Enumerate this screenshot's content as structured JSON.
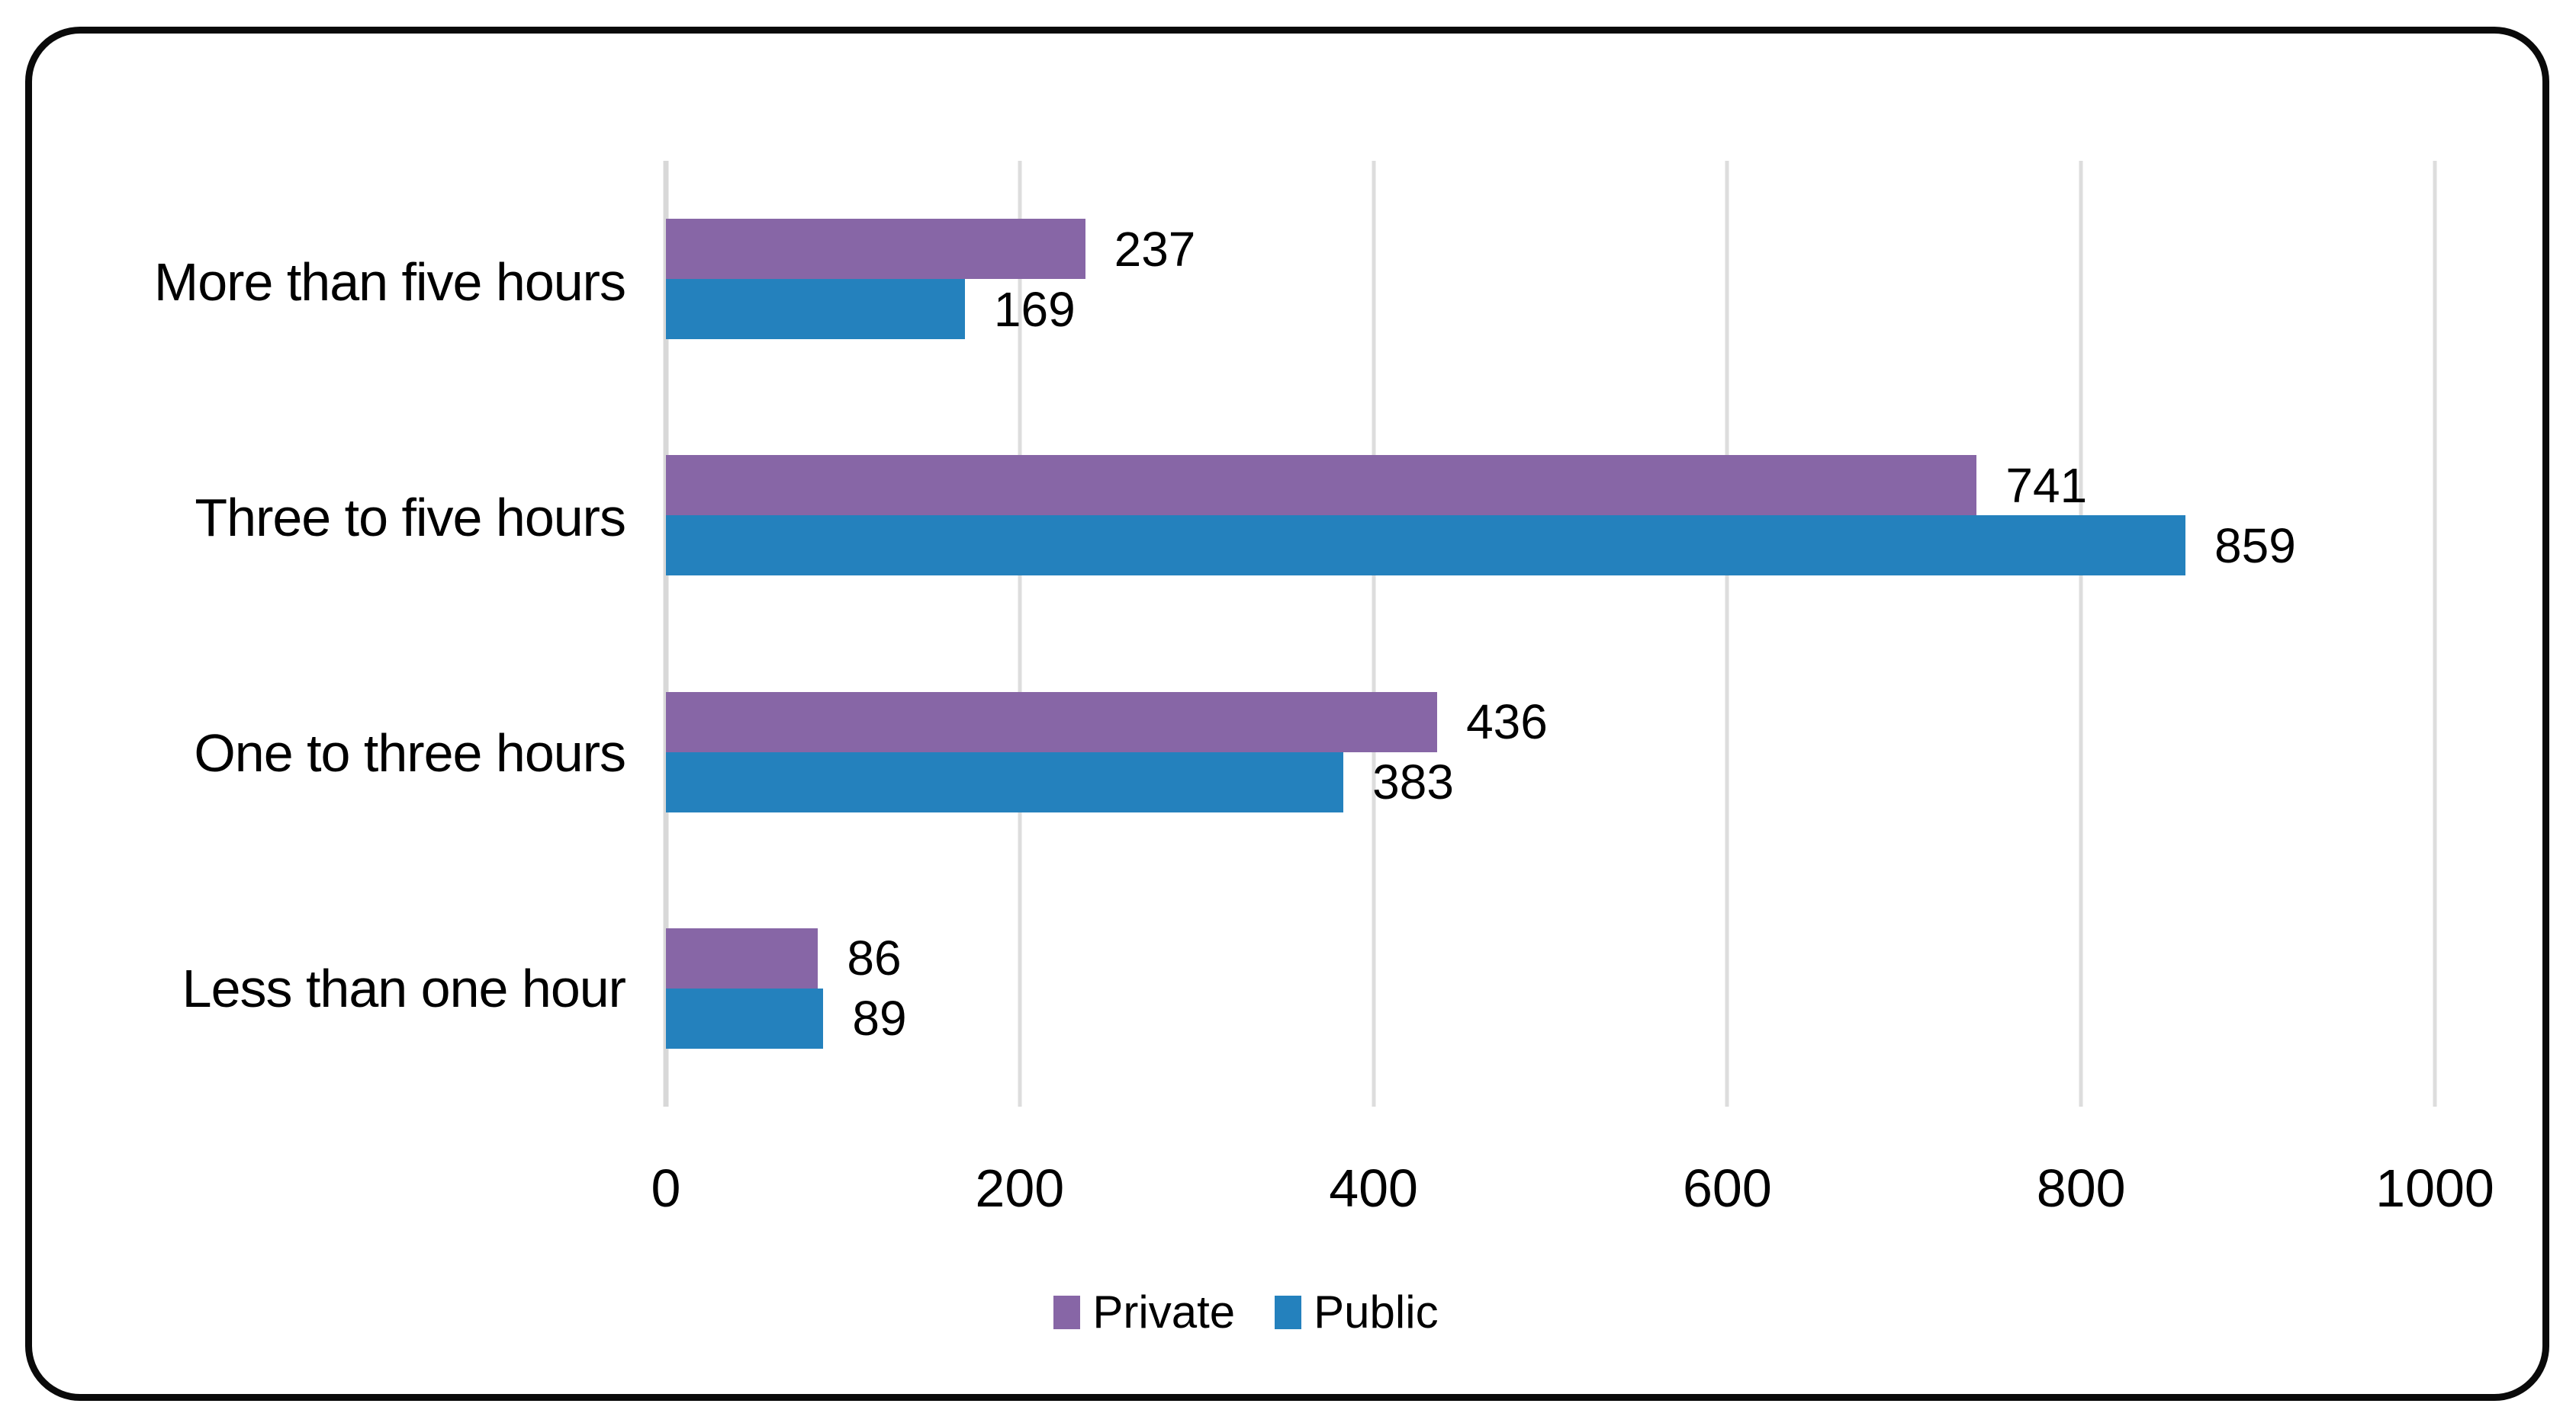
{
  "chart_data": {
    "type": "bar",
    "orientation": "horizontal",
    "categories": [
      "More than five hours",
      "Three to five hours",
      "One to three hours",
      "Less than one hour"
    ],
    "series": [
      {
        "name": "Private",
        "color": "#8766A6",
        "values": [
          237,
          741,
          436,
          86
        ]
      },
      {
        "name": "Public",
        "color": "#2481BD",
        "values": [
          169,
          859,
          383,
          89
        ]
      }
    ],
    "xlim": [
      0,
      1000
    ],
    "xticks": [
      "0",
      "200",
      "400",
      "600",
      "800",
      "1000"
    ],
    "grid": "vertical-gridlines-on",
    "data_labels": true,
    "legend_position": "bottom-center"
  },
  "colors": {
    "gridline": "#DDDDDD",
    "border": "#0A0A0A",
    "text": "#000000"
  }
}
